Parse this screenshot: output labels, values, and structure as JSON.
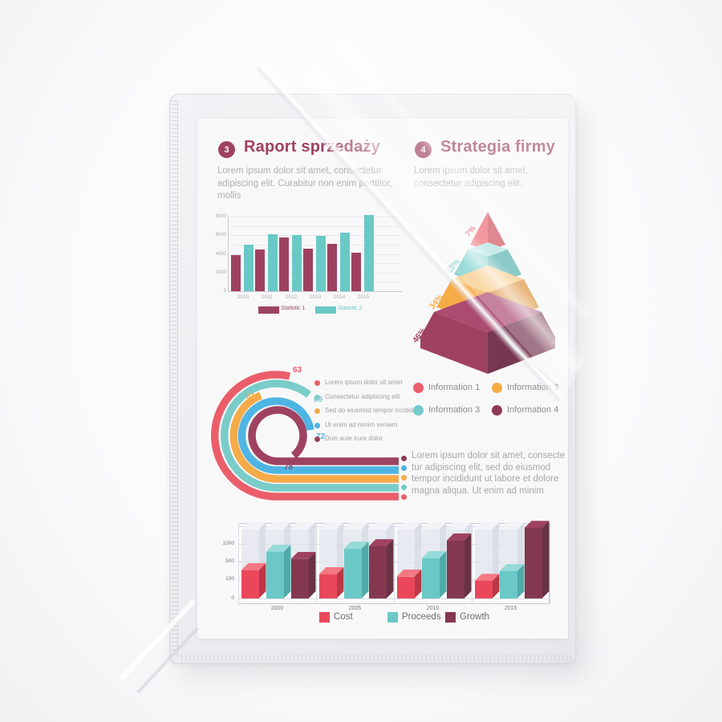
{
  "document": {
    "sections": [
      {
        "badge": "3",
        "title": "Raport sprzedaży",
        "body": "Lorem ipsum dolor sit amet, consectetur adipiscing elit. Curabitur non enim porttitor, mollis"
      },
      {
        "badge": "4",
        "title": "Strategia firmy",
        "body": "Lorem ipsum dolor sit amet, consectetur adipiscing elit."
      }
    ],
    "info_legend": [
      {
        "label": "Information 1",
        "color": "#e8414f"
      },
      {
        "label": "Information 2",
        "color": "#f59d27"
      },
      {
        "label": "Information 3",
        "color": "#5bc2c0"
      },
      {
        "label": "Information 4",
        "color": "#7a1638"
      }
    ],
    "bullet_paragraph": {
      "dot_colors": [
        "#7a1638",
        "#2ea9df",
        "#f59d27",
        "#5bc2c0",
        "#e8414f"
      ],
      "lines": [
        "Lorem ipsum dolor sit amet, consecte",
        "tur adipiscing elit, sed do eiusmod",
        "tempor incididunt ut labore et dolore",
        "magna aliqua. Ut enim ad minim"
      ]
    }
  },
  "chart_data": [
    {
      "id": "sales-bar-chart",
      "type": "bar",
      "categories": [
        "2010",
        "2011",
        "2012",
        "2013",
        "2014",
        "2015"
      ],
      "series": [
        {
          "name": "Statistic 1",
          "color": "#8e2044",
          "values": [
            3900,
            4500,
            5800,
            4600,
            5100,
            4100
          ]
        },
        {
          "name": "Statistic 2",
          "color": "#4fc0bd",
          "values": [
            5000,
            6100,
            6000,
            5900,
            6300,
            8200
          ]
        }
      ],
      "ylim": [
        0,
        8400
      ],
      "yticks": [
        0,
        2000,
        4000,
        6000,
        8000
      ],
      "grid": "solid-major-dashed-minor",
      "legend_position": "bottom"
    },
    {
      "id": "strategy-pyramid",
      "type": "pyramid",
      "levels": [
        {
          "label": "7%",
          "value": 7,
          "color": "#e8414f"
        },
        {
          "label": "13%",
          "value": 13,
          "color": "#56c3c0"
        },
        {
          "label": "34%",
          "value": 34,
          "color": "#f59d27"
        },
        {
          "label": "46%",
          "value": 46,
          "color": "#8e2044"
        }
      ]
    },
    {
      "id": "radial-progress-chart",
      "type": "radial-bar",
      "items": [
        {
          "label": "Lorem ipsum dolor sit amet",
          "value": 63,
          "color": "#e8414f"
        },
        {
          "label": "Consectetur adipiscing elit",
          "value": 69,
          "color": "#62c4c0"
        },
        {
          "label": "Sed do eiusmod tempor incididunt",
          "value": 31,
          "color": "#f59d27"
        },
        {
          "label": "Ut enim ad minim veniam",
          "value": 72,
          "color": "#2ea9df"
        },
        {
          "label": "Duis aute irure dolor",
          "value": 78,
          "color": "#8e2044"
        }
      ]
    },
    {
      "id": "finance-3d-bar-chart",
      "type": "bar",
      "categories": [
        "2000",
        "2005",
        "2010",
        "2015"
      ],
      "series": [
        {
          "name": "Cost",
          "color": "#e8273c",
          "values": [
            300,
            210,
            160,
            90
          ]
        },
        {
          "name": "Proceeds",
          "color": "#4fc0bd",
          "values": [
            770,
            860,
            590,
            280
          ]
        },
        {
          "name": "Growth",
          "color": "#6d1430",
          "values": [
            570,
            930,
            1090,
            1450
          ]
        }
      ],
      "yticks": [
        0,
        100,
        500,
        1000
      ],
      "scale": "non-linear"
    }
  ],
  "colors": {
    "accent_maroon": "#8e2044",
    "red": "#e8414f",
    "teal": "#4fc0bd",
    "orange": "#f59d27",
    "blue": "#2ea9df",
    "dark_maroon": "#6d1430",
    "body_text": "#a1a1a5"
  }
}
